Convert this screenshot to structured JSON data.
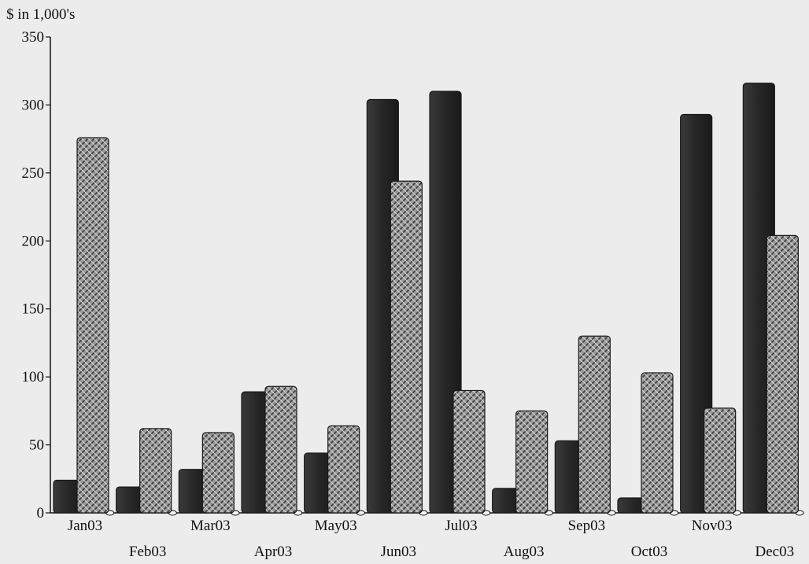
{
  "chart_data": {
    "type": "bar",
    "title": "",
    "unit_label": "$ in 1,000's",
    "xlabel": "",
    "ylabel": "",
    "ylim": [
      0,
      350
    ],
    "yticks": [
      0,
      50,
      100,
      150,
      200,
      250,
      300,
      350
    ],
    "grid": false,
    "legend": "none",
    "categories": [
      "Jan03",
      "Feb03",
      "Mar03",
      "Apr03",
      "May03",
      "Jun03",
      "Jul03",
      "Aug03",
      "Sep03",
      "Oct03",
      "Nov03",
      "Dec03"
    ],
    "series": [
      {
        "color": "#2b2b2b",
        "pattern": "solid-dark",
        "values": [
          24,
          19,
          32,
          89,
          44,
          304,
          310,
          18,
          53,
          11,
          293,
          316
        ]
      },
      {
        "color": "#8c8c8c",
        "pattern": "crosshatch",
        "values": [
          276,
          62,
          59,
          93,
          64,
          244,
          90,
          75,
          130,
          103,
          77,
          204
        ]
      }
    ]
  }
}
